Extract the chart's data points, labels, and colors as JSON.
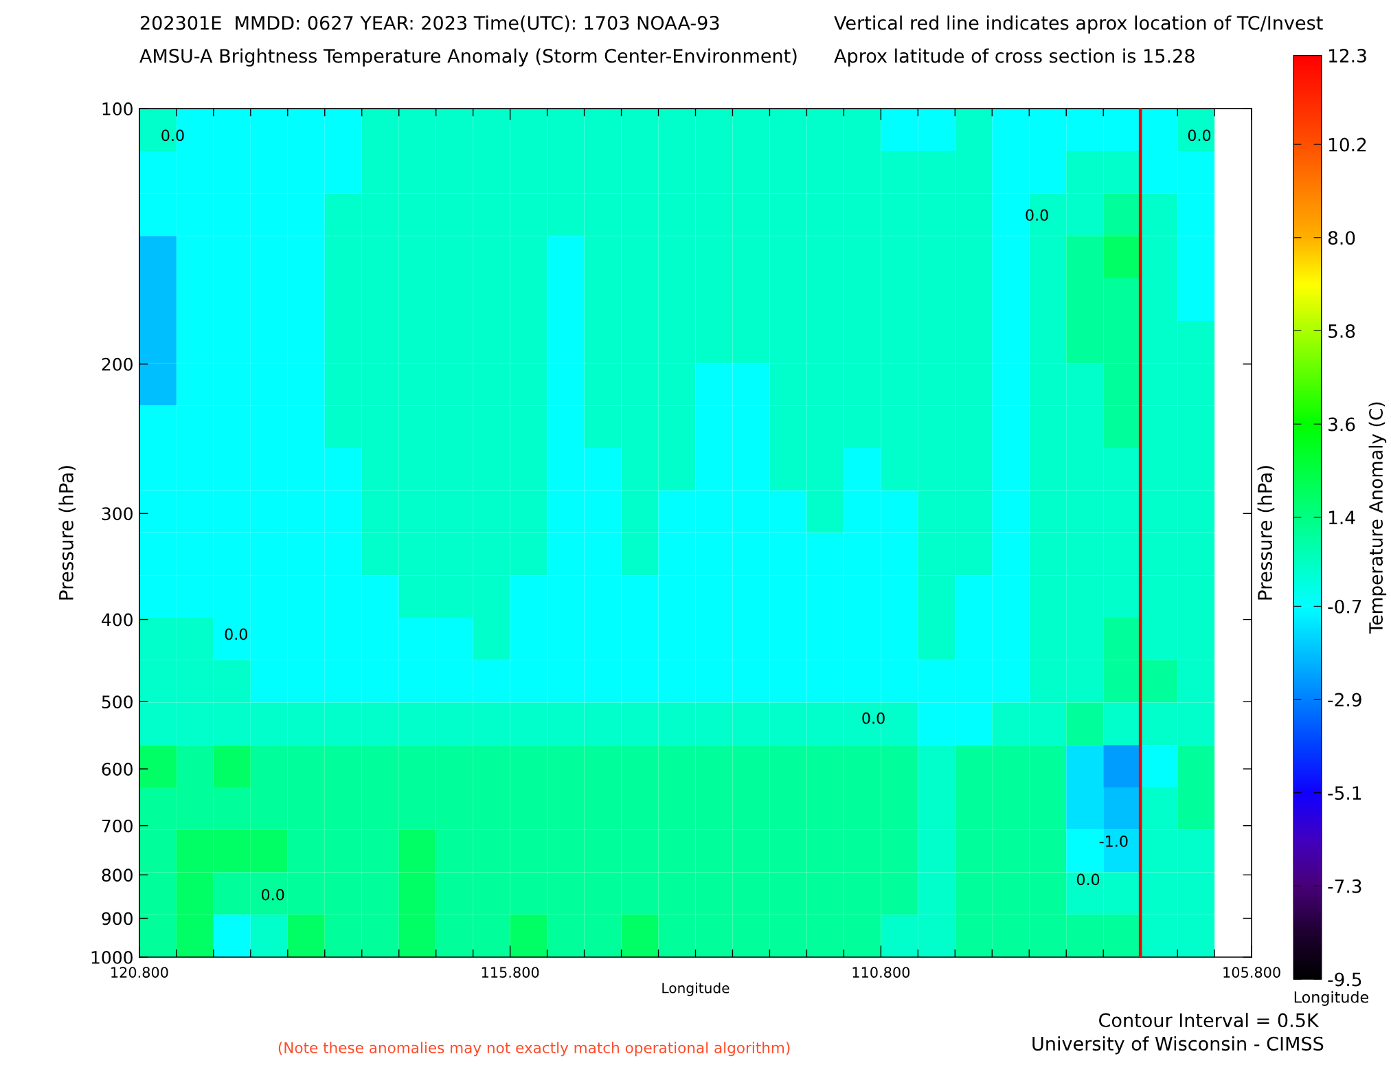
{
  "chart_data": {
    "type": "heatmap",
    "title": "202301E  MMDD: 0627 YEAR: 2023 Time(UTC): 1703 NOAA-93",
    "subtitle": "AMSU-A Brightness Temperature Anomaly (Storm Center-Environment)",
    "xlabel": "Longitude",
    "ylabel": "Pressure (hPa)",
    "y2label": "Pressure (hPa)",
    "clabel": "Temperature Anomaly (C)",
    "annotations": [
      "Vertical red line indicates aprox location of TC/Invest",
      "Aprox latitude of cross section is 15.28",
      "Contour Interval = 0.5K",
      "University of Wisconsin - CIMSS",
      "(Note these anomalies may not exactly match operational algorithm)",
      "Longitude",
      "0.0",
      "0.0",
      "0.0",
      "0.0",
      "0.0",
      "0.0",
      "0.0",
      "-1.0"
    ],
    "x": [
      120.55,
      120.05,
      119.55,
      119.05,
      118.55,
      118.05,
      117.55,
      117.05,
      116.55,
      116.05,
      115.55,
      115.05,
      114.55,
      114.05,
      113.55,
      113.05,
      112.55,
      112.05,
      111.55,
      111.05,
      110.55,
      110.05,
      109.55,
      109.05,
      108.55,
      108.05,
      107.55,
      107.05,
      106.55
    ],
    "y": [
      105.9,
      118.9,
      133.4,
      149.6,
      167.9,
      188.4,
      211.3,
      237.1,
      266.1,
      298.5,
      335.0,
      375.8,
      421.7,
      473.2,
      530.9,
      595.7,
      668.3,
      749.9,
      841.4,
      944.1
    ],
    "cells": [
      [
        0.2,
        -0.7,
        -0.7,
        -0.7,
        -0.7,
        -0.7,
        0.2,
        0.2,
        0.2,
        0.2,
        0.2,
        0.2,
        0.2,
        0.2,
        0.2,
        0.2,
        0.2,
        0.2,
        0.2,
        0.2,
        -0.7,
        -0.7,
        0.2,
        -0.7,
        -0.7,
        -0.7,
        -0.7,
        -0.7,
        0.2
      ],
      [
        -0.7,
        -0.7,
        -0.7,
        -0.7,
        -0.7,
        -0.7,
        0.2,
        0.2,
        0.2,
        0.2,
        0.2,
        0.2,
        0.2,
        0.2,
        0.2,
        0.2,
        0.2,
        0.2,
        0.2,
        0.2,
        0.2,
        0.2,
        0.2,
        -0.7,
        -0.7,
        0.2,
        0.2,
        -0.7,
        -0.7
      ],
      [
        -0.7,
        -0.7,
        -0.7,
        -0.7,
        -0.7,
        0.2,
        0.2,
        0.2,
        0.2,
        0.2,
        0.2,
        0.2,
        0.2,
        0.2,
        0.2,
        0.2,
        0.2,
        0.2,
        0.2,
        0.2,
        0.2,
        0.2,
        0.2,
        -0.7,
        0.2,
        0.2,
        1.0,
        0.2,
        -0.7
      ],
      [
        -1.8,
        -0.7,
        -0.7,
        -0.7,
        -0.7,
        0.2,
        0.2,
        0.2,
        0.2,
        0.2,
        0.2,
        -0.7,
        0.2,
        0.2,
        0.2,
        0.2,
        0.2,
        0.2,
        0.2,
        0.2,
        0.2,
        0.2,
        0.2,
        -0.7,
        0.2,
        1.0,
        1.9,
        0.2,
        -0.7
      ],
      [
        -1.8,
        -0.7,
        -0.7,
        -0.7,
        -0.7,
        0.2,
        0.2,
        0.2,
        0.2,
        0.2,
        0.2,
        -0.7,
        0.2,
        0.2,
        0.2,
        0.2,
        0.2,
        0.2,
        0.2,
        0.2,
        0.2,
        0.2,
        0.2,
        -0.7,
        0.2,
        1.0,
        1.0,
        0.2,
        -0.7
      ],
      [
        -1.8,
        -0.7,
        -0.7,
        -0.7,
        -0.7,
        0.2,
        0.2,
        0.2,
        0.2,
        0.2,
        0.2,
        -0.7,
        0.2,
        0.2,
        0.2,
        0.2,
        0.2,
        0.2,
        0.2,
        0.2,
        0.2,
        0.2,
        0.2,
        -0.7,
        0.2,
        1.0,
        1.0,
        0.2,
        0.2
      ],
      [
        -1.8,
        -0.7,
        -0.7,
        -0.7,
        -0.7,
        0.2,
        0.2,
        0.2,
        0.2,
        0.2,
        0.2,
        -0.7,
        0.2,
        0.2,
        0.2,
        -0.7,
        -0.7,
        0.2,
        0.2,
        0.2,
        0.2,
        0.2,
        0.2,
        -0.7,
        0.2,
        0.2,
        1.0,
        0.2,
        0.2
      ],
      [
        -0.7,
        -0.7,
        -0.7,
        -0.7,
        -0.7,
        0.2,
        0.2,
        0.2,
        0.2,
        0.2,
        0.2,
        -0.7,
        0.2,
        0.2,
        0.2,
        -0.7,
        -0.7,
        0.2,
        0.2,
        0.2,
        0.2,
        0.2,
        0.2,
        -0.7,
        0.2,
        0.2,
        1.0,
        0.2,
        0.2
      ],
      [
        -0.7,
        -0.7,
        -0.7,
        -0.7,
        -0.7,
        -0.7,
        0.2,
        0.2,
        0.2,
        0.2,
        0.2,
        -0.7,
        -0.7,
        0.2,
        0.2,
        -0.7,
        -0.7,
        0.2,
        0.2,
        -0.7,
        0.2,
        0.2,
        0.2,
        -0.7,
        0.2,
        0.2,
        0.2,
        0.2,
        0.2
      ],
      [
        -0.7,
        -0.7,
        -0.7,
        -0.7,
        -0.7,
        -0.7,
        0.2,
        0.2,
        0.2,
        0.2,
        0.2,
        -0.7,
        -0.7,
        0.2,
        -0.7,
        -0.7,
        -0.7,
        -0.7,
        0.2,
        -0.7,
        -0.7,
        0.2,
        0.2,
        -0.7,
        0.2,
        0.2,
        0.2,
        0.2,
        0.2
      ],
      [
        -0.7,
        -0.7,
        -0.7,
        -0.7,
        -0.7,
        -0.7,
        0.2,
        0.2,
        0.2,
        0.2,
        0.2,
        -0.7,
        -0.7,
        0.2,
        -0.7,
        -0.7,
        -0.7,
        -0.7,
        -0.7,
        -0.7,
        -0.7,
        0.2,
        0.2,
        -0.7,
        0.2,
        0.2,
        0.2,
        0.2,
        0.2
      ],
      [
        -0.7,
        -0.7,
        -0.7,
        -0.7,
        -0.7,
        -0.7,
        -0.7,
        0.2,
        0.2,
        0.2,
        -0.7,
        -0.7,
        -0.7,
        -0.7,
        -0.7,
        -0.7,
        -0.7,
        -0.7,
        -0.7,
        -0.7,
        -0.7,
        0.2,
        -0.7,
        -0.7,
        0.2,
        0.2,
        0.2,
        0.2,
        0.2
      ],
      [
        0.2,
        0.2,
        -0.7,
        -0.7,
        -0.7,
        -0.7,
        -0.7,
        -0.7,
        -0.7,
        0.2,
        -0.7,
        -0.7,
        -0.7,
        -0.7,
        -0.7,
        -0.7,
        -0.7,
        -0.7,
        -0.7,
        -0.7,
        -0.7,
        0.2,
        -0.7,
        -0.7,
        0.2,
        0.2,
        1.0,
        0.2,
        0.2
      ],
      [
        0.2,
        0.2,
        0.2,
        -0.7,
        -0.7,
        -0.7,
        -0.7,
        -0.7,
        -0.7,
        -0.7,
        -0.7,
        -0.7,
        -0.7,
        -0.7,
        -0.7,
        -0.7,
        -0.7,
        -0.7,
        -0.7,
        -0.7,
        -0.7,
        -0.7,
        -0.7,
        -0.7,
        0.2,
        0.2,
        1.0,
        1.0,
        0.2
      ],
      [
        0.2,
        0.2,
        0.2,
        0.2,
        0.2,
        0.2,
        0.2,
        0.2,
        0.2,
        0.2,
        0.2,
        0.2,
        0.2,
        0.2,
        0.2,
        0.2,
        0.2,
        0.2,
        0.2,
        0.2,
        0.2,
        -0.7,
        -0.7,
        0.2,
        0.2,
        1.0,
        0.2,
        0.2,
        0.2
      ],
      [
        1.9,
        1.0,
        1.9,
        1.0,
        1.0,
        1.0,
        1.0,
        1.0,
        1.0,
        1.0,
        1.0,
        1.0,
        1.0,
        1.0,
        1.0,
        1.0,
        1.0,
        1.0,
        1.0,
        1.0,
        1.0,
        0.2,
        1.0,
        1.0,
        1.0,
        -1.2,
        -2.4,
        -0.7,
        1.0
      ],
      [
        1.0,
        1.0,
        1.0,
        1.0,
        1.0,
        1.0,
        1.0,
        1.0,
        1.0,
        1.0,
        1.0,
        1.0,
        1.0,
        1.0,
        1.0,
        1.0,
        1.0,
        1.0,
        1.0,
        1.0,
        1.0,
        0.2,
        1.0,
        1.0,
        1.0,
        -1.2,
        -1.8,
        0.2,
        1.0
      ],
      [
        1.0,
        1.9,
        1.9,
        1.9,
        1.0,
        1.0,
        1.0,
        1.9,
        1.0,
        1.0,
        1.0,
        1.0,
        1.0,
        1.0,
        1.0,
        1.0,
        1.0,
        1.0,
        1.0,
        1.0,
        1.0,
        0.2,
        1.0,
        1.0,
        1.0,
        -0.7,
        -1.2,
        0.2,
        0.2
      ],
      [
        1.0,
        1.9,
        1.0,
        1.0,
        1.0,
        1.0,
        1.0,
        1.9,
        1.0,
        1.0,
        1.0,
        1.0,
        1.0,
        1.0,
        1.0,
        1.0,
        1.0,
        1.0,
        1.0,
        1.0,
        1.0,
        0.2,
        1.0,
        1.0,
        1.0,
        0.2,
        0.2,
        0.2,
        0.2
      ],
      [
        1.0,
        1.9,
        -0.7,
        0.2,
        1.9,
        1.0,
        1.0,
        1.9,
        1.0,
        1.0,
        1.9,
        1.0,
        1.0,
        1.9,
        1.0,
        1.0,
        1.0,
        1.0,
        1.0,
        1.0,
        0.2,
        0.2,
        1.0,
        1.0,
        1.0,
        1.0,
        1.0,
        0.2,
        0.2
      ]
    ],
    "clim": [
      -9.5,
      12.3
    ],
    "cticks": [
      -9.5,
      -7.3,
      -5.1,
      -2.9,
      -0.7,
      1.4,
      3.6,
      5.8,
      {
        "value": 8.0,
        "label": "8.0"
      },
      10.2,
      12.3
    ],
    "xlim": [
      120.8,
      105.8
    ],
    "xticks": [
      {
        "value": 120.8,
        "label": "120.800"
      },
      {
        "value": 115.8,
        "label": "115.800"
      },
      {
        "value": 110.8,
        "label": "110.800"
      },
      {
        "value": 105.8,
        "label": "105.800"
      }
    ],
    "ylim": [
      1000,
      100
    ],
    "yticks": [
      100,
      200,
      300,
      400,
      500,
      600,
      700,
      800,
      900,
      1000
    ],
    "log": "y",
    "ref_lines": [
      {
        "axis": "x",
        "value": 107.3,
        "color": "#ff0000"
      }
    ]
  }
}
